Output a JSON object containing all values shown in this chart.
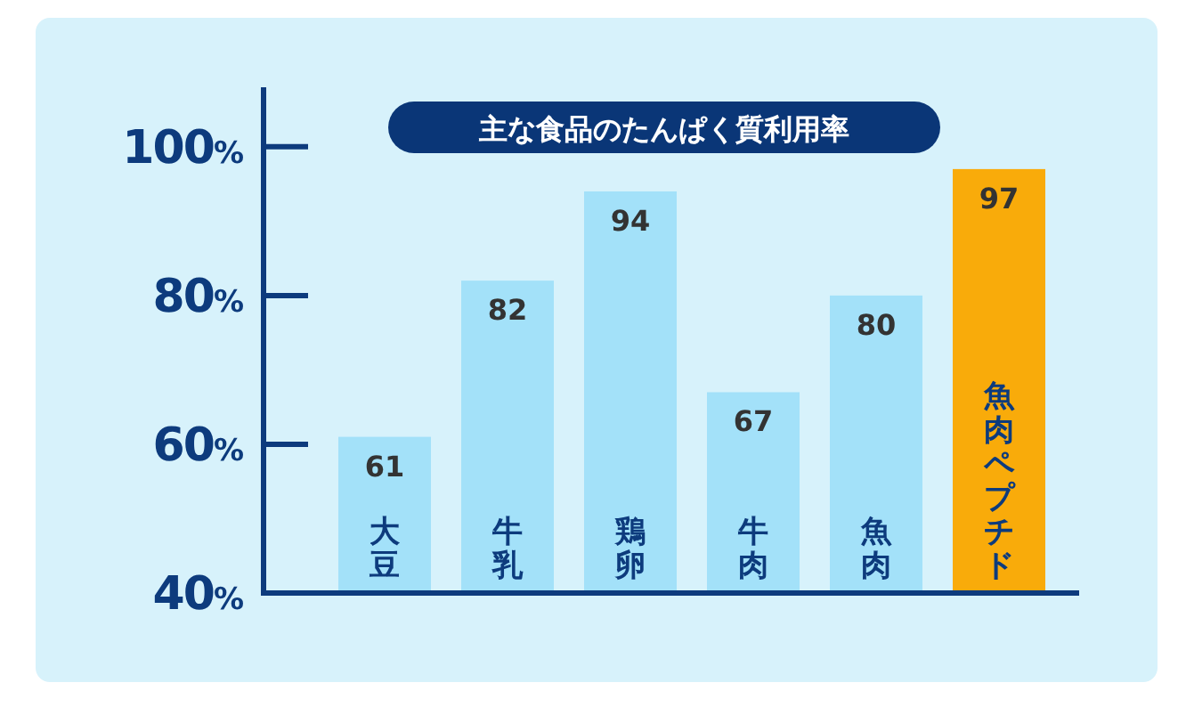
{
  "chart_data": {
    "type": "bar",
    "title": "主な食品のたんぱく質利用率",
    "categories": [
      "大豆",
      "牛乳",
      "鶏卵",
      "牛肉",
      "魚肉",
      "魚肉ペプチド"
    ],
    "values": [
      61,
      82,
      94,
      67,
      80,
      97
    ],
    "colors": [
      "#a3e1f9",
      "#a3e1f9",
      "#a3e1f9",
      "#a3e1f9",
      "#a3e1f9",
      "#f9ab0a"
    ],
    "ylim": [
      40,
      108
    ],
    "yticks": [
      {
        "value": 40,
        "label": "40%"
      },
      {
        "value": 60,
        "label": "60%"
      },
      {
        "value": 80,
        "label": "80%"
      },
      {
        "value": 100,
        "label": "100%"
      }
    ],
    "data_labels": true
  }
}
